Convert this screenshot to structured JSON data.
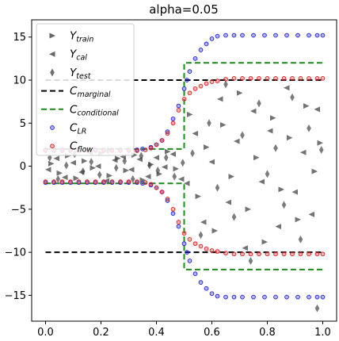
{
  "chart_data": {
    "type": "scatter",
    "title": "alpha=0.05",
    "xlabel": "",
    "ylabel": "",
    "xlim": [
      -0.05,
      1.05
    ],
    "ylim": [
      -18.0,
      17.0
    ],
    "x_ticks": [
      0.0,
      0.2,
      0.4,
      0.6,
      0.8,
      1.0
    ],
    "x_tick_labels": [
      "0.0",
      "0.2",
      "0.4",
      "0.6",
      "0.8",
      "1.0"
    ],
    "y_ticks": [
      -15,
      -10,
      -5,
      0,
      5,
      10,
      15
    ],
    "y_tick_labels": [
      "−15",
      "−10",
      "−5",
      "0",
      "5",
      "10",
      "15"
    ],
    "grid": false,
    "legend_position": "top-left",
    "legend": [
      {
        "label": "Y",
        "sub": "train",
        "marker": "triangle-right",
        "color": "#333333"
      },
      {
        "label": "Y",
        "sub": "cal",
        "marker": "triangle-left",
        "color": "#333333"
      },
      {
        "label": "Y",
        "sub": "test",
        "marker": "thin-diamond",
        "color": "#333333"
      },
      {
        "label": "C",
        "sub": "marginal",
        "marker": "dashed-line",
        "color": "#000000"
      },
      {
        "label": "C",
        "sub": "conditional",
        "marker": "dashed-line",
        "color": "#1a8a1a"
      },
      {
        "label": "C",
        "sub": "LR",
        "marker": "circle",
        "color": "#2020e0"
      },
      {
        "label": "C",
        "sub": "flow",
        "marker": "circle",
        "color": "#e02020"
      }
    ],
    "series": [
      {
        "name": "C_marginal",
        "kind": "dashed-line",
        "color": "#000000",
        "lines": [
          {
            "x": [
              0.0,
              1.0
            ],
            "y": [
              10.0,
              10.0
            ]
          },
          {
            "x": [
              0.0,
              1.0
            ],
            "y": [
              -10.0,
              -10.0
            ]
          }
        ]
      },
      {
        "name": "C_conditional",
        "kind": "dashed-line",
        "color": "#1a8a1a",
        "lines": [
          {
            "x": [
              0.0,
              0.5,
              0.5,
              1.0
            ],
            "y": [
              2.0,
              2.0,
              12.0,
              12.0
            ]
          },
          {
            "x": [
              0.0,
              0.5,
              0.5,
              1.0
            ],
            "y": [
              -2.0,
              -2.0,
              -12.0,
              -12.0
            ]
          }
        ]
      },
      {
        "name": "C_LR",
        "kind": "circle-markers",
        "color": "#2020e0",
        "points": [
          [
            0.0,
            1.9
          ],
          [
            0.03,
            1.9
          ],
          [
            0.06,
            1.9
          ],
          [
            0.09,
            1.9
          ],
          [
            0.12,
            1.9
          ],
          [
            0.15,
            1.9
          ],
          [
            0.18,
            1.9
          ],
          [
            0.21,
            1.9
          ],
          [
            0.24,
            1.9
          ],
          [
            0.27,
            1.9
          ],
          [
            0.3,
            1.9
          ],
          [
            0.33,
            1.9
          ],
          [
            0.35,
            2.0
          ],
          [
            0.38,
            2.2
          ],
          [
            0.4,
            2.5
          ],
          [
            0.42,
            3.0
          ],
          [
            0.44,
            4.0
          ],
          [
            0.46,
            5.5
          ],
          [
            0.48,
            7.0
          ],
          [
            0.5,
            9.0
          ],
          [
            0.51,
            10.0
          ],
          [
            0.52,
            11.0
          ],
          [
            0.54,
            12.5
          ],
          [
            0.56,
            13.5
          ],
          [
            0.58,
            14.2
          ],
          [
            0.6,
            14.8
          ],
          [
            0.62,
            15.1
          ],
          [
            0.65,
            15.2
          ],
          [
            0.68,
            15.2
          ],
          [
            0.71,
            15.2
          ],
          [
            0.75,
            15.2
          ],
          [
            0.79,
            15.2
          ],
          [
            0.83,
            15.2
          ],
          [
            0.87,
            15.2
          ],
          [
            0.91,
            15.2
          ],
          [
            0.95,
            15.2
          ],
          [
            0.98,
            15.2
          ],
          [
            1.0,
            15.2
          ],
          [
            0.0,
            -1.9
          ],
          [
            0.03,
            -1.9
          ],
          [
            0.06,
            -1.9
          ],
          [
            0.09,
            -1.9
          ],
          [
            0.12,
            -1.9
          ],
          [
            0.15,
            -1.9
          ],
          [
            0.18,
            -1.9
          ],
          [
            0.21,
            -1.9
          ],
          [
            0.24,
            -1.9
          ],
          [
            0.27,
            -1.9
          ],
          [
            0.3,
            -1.9
          ],
          [
            0.33,
            -1.9
          ],
          [
            0.35,
            -2.0
          ],
          [
            0.38,
            -2.2
          ],
          [
            0.4,
            -2.5
          ],
          [
            0.42,
            -3.0
          ],
          [
            0.44,
            -4.0
          ],
          [
            0.46,
            -5.5
          ],
          [
            0.48,
            -7.0
          ],
          [
            0.5,
            -9.0
          ],
          [
            0.51,
            -10.0
          ],
          [
            0.52,
            -11.0
          ],
          [
            0.54,
            -12.5
          ],
          [
            0.56,
            -13.5
          ],
          [
            0.58,
            -14.2
          ],
          [
            0.6,
            -14.8
          ],
          [
            0.62,
            -15.1
          ],
          [
            0.65,
            -15.2
          ],
          [
            0.68,
            -15.2
          ],
          [
            0.71,
            -15.2
          ],
          [
            0.75,
            -15.2
          ],
          [
            0.79,
            -15.2
          ],
          [
            0.83,
            -15.2
          ],
          [
            0.87,
            -15.2
          ],
          [
            0.91,
            -15.2
          ],
          [
            0.95,
            -15.2
          ],
          [
            0.98,
            -15.2
          ],
          [
            1.0,
            -15.2
          ]
        ]
      },
      {
        "name": "C_flow",
        "kind": "circle-markers",
        "color": "#e02020",
        "points": [
          [
            0.0,
            1.8
          ],
          [
            0.03,
            1.8
          ],
          [
            0.06,
            1.8
          ],
          [
            0.09,
            1.8
          ],
          [
            0.12,
            1.8
          ],
          [
            0.15,
            1.8
          ],
          [
            0.18,
            1.8
          ],
          [
            0.21,
            1.8
          ],
          [
            0.24,
            1.8
          ],
          [
            0.27,
            1.8
          ],
          [
            0.3,
            1.8
          ],
          [
            0.33,
            1.8
          ],
          [
            0.36,
            1.9
          ],
          [
            0.38,
            2.1
          ],
          [
            0.4,
            2.5
          ],
          [
            0.42,
            3.0
          ],
          [
            0.44,
            3.8
          ],
          [
            0.46,
            5.0
          ],
          [
            0.48,
            6.5
          ],
          [
            0.5,
            7.8
          ],
          [
            0.52,
            8.5
          ],
          [
            0.54,
            9.0
          ],
          [
            0.56,
            9.3
          ],
          [
            0.58,
            9.6
          ],
          [
            0.6,
            9.8
          ],
          [
            0.62,
            9.9
          ],
          [
            0.65,
            10.1
          ],
          [
            0.68,
            10.2
          ],
          [
            0.71,
            10.2
          ],
          [
            0.74,
            10.2
          ],
          [
            0.77,
            10.2
          ],
          [
            0.8,
            10.2
          ],
          [
            0.83,
            10.2
          ],
          [
            0.86,
            10.2
          ],
          [
            0.89,
            10.2
          ],
          [
            0.92,
            10.2
          ],
          [
            0.95,
            10.2
          ],
          [
            0.98,
            10.2
          ],
          [
            1.0,
            10.2
          ],
          [
            0.0,
            -1.8
          ],
          [
            0.03,
            -1.8
          ],
          [
            0.06,
            -1.8
          ],
          [
            0.09,
            -1.8
          ],
          [
            0.12,
            -1.8
          ],
          [
            0.15,
            -1.8
          ],
          [
            0.18,
            -1.8
          ],
          [
            0.21,
            -1.8
          ],
          [
            0.24,
            -1.8
          ],
          [
            0.27,
            -1.8
          ],
          [
            0.3,
            -1.8
          ],
          [
            0.33,
            -1.8
          ],
          [
            0.36,
            -1.9
          ],
          [
            0.38,
            -2.1
          ],
          [
            0.4,
            -2.5
          ],
          [
            0.42,
            -3.0
          ],
          [
            0.44,
            -3.8
          ],
          [
            0.46,
            -5.0
          ],
          [
            0.48,
            -6.5
          ],
          [
            0.5,
            -7.8
          ],
          [
            0.52,
            -8.5
          ],
          [
            0.54,
            -9.0
          ],
          [
            0.56,
            -9.3
          ],
          [
            0.58,
            -9.6
          ],
          [
            0.6,
            -9.8
          ],
          [
            0.62,
            -9.9
          ],
          [
            0.65,
            -10.1
          ],
          [
            0.68,
            -10.2
          ],
          [
            0.71,
            -10.2
          ],
          [
            0.74,
            -10.2
          ],
          [
            0.77,
            -10.2
          ],
          [
            0.8,
            -10.2
          ],
          [
            0.83,
            -10.2
          ],
          [
            0.86,
            -10.2
          ],
          [
            0.89,
            -10.2
          ],
          [
            0.92,
            -10.2
          ],
          [
            0.95,
            -10.2
          ],
          [
            0.98,
            -10.2
          ],
          [
            1.0,
            -10.2
          ]
        ]
      },
      {
        "name": "Y_train",
        "kind": "triangle-right-markers",
        "color": "#444444",
        "points": [
          [
            0.02,
            0.3
          ],
          [
            0.05,
            -0.8
          ],
          [
            0.08,
            1.2
          ],
          [
            0.11,
            -1.4
          ],
          [
            0.14,
            0.6
          ],
          [
            0.17,
            -0.2
          ],
          [
            0.2,
            1.5
          ],
          [
            0.23,
            -1.1
          ],
          [
            0.26,
            0.9
          ],
          [
            0.29,
            -0.5
          ],
          [
            0.32,
            1.3
          ],
          [
            0.35,
            -1.6
          ],
          [
            0.38,
            0.2
          ],
          [
            0.41,
            -0.9
          ],
          [
            0.44,
            1.7
          ],
          [
            0.47,
            -0.3
          ],
          [
            0.52,
            6.0
          ],
          [
            0.55,
            -3.5
          ],
          [
            0.58,
            2.2
          ],
          [
            0.61,
            -7.5
          ],
          [
            0.64,
            4.8
          ],
          [
            0.67,
            -1.2
          ],
          [
            0.7,
            8.5
          ],
          [
            0.73,
            -5.0
          ],
          [
            0.76,
            1.0
          ],
          [
            0.79,
            -8.8
          ],
          [
            0.82,
            5.6
          ],
          [
            0.85,
            -2.7
          ],
          [
            0.88,
            3.3
          ],
          [
            0.91,
            -6.2
          ],
          [
            0.94,
            7.0
          ],
          [
            0.97,
            -0.6
          ],
          [
            0.99,
            2.7
          ]
        ]
      },
      {
        "name": "Y_cal",
        "kind": "triangle-left-markers",
        "color": "#444444",
        "points": [
          [
            0.01,
            -0.4
          ],
          [
            0.04,
            0.9
          ],
          [
            0.07,
            -1.3
          ],
          [
            0.1,
            0.4
          ],
          [
            0.13,
            -0.7
          ],
          [
            0.16,
            1.6
          ],
          [
            0.19,
            0.0
          ],
          [
            0.22,
            -1.7
          ],
          [
            0.25,
            0.7
          ],
          [
            0.28,
            1.1
          ],
          [
            0.31,
            -0.4
          ],
          [
            0.34,
            0.8
          ],
          [
            0.37,
            -1.2
          ],
          [
            0.4,
            1.0
          ],
          [
            0.43,
            -0.1
          ],
          [
            0.46,
            1.4
          ],
          [
            0.49,
            -1.5
          ],
          [
            0.51,
            -2.0
          ],
          [
            0.54,
            3.8
          ],
          [
            0.57,
            -6.5
          ],
          [
            0.6,
            0.5
          ],
          [
            0.63,
            7.8
          ],
          [
            0.66,
            -4.2
          ],
          [
            0.69,
            2.9
          ],
          [
            0.72,
            -9.5
          ],
          [
            0.75,
            6.4
          ],
          [
            0.78,
            -1.8
          ],
          [
            0.81,
            4.1
          ],
          [
            0.84,
            -7.0
          ],
          [
            0.87,
            9.1
          ],
          [
            0.9,
            -3.0
          ],
          [
            0.93,
            1.6
          ],
          [
            0.96,
            -5.6
          ],
          [
            0.98,
            6.6
          ]
        ]
      },
      {
        "name": "Y_test",
        "kind": "thin-diamond-markers",
        "color": "#444444",
        "points": [
          [
            0.015,
            1.0
          ],
          [
            0.045,
            -1.5
          ],
          [
            0.075,
            0.1
          ],
          [
            0.105,
            1.4
          ],
          [
            0.135,
            -0.6
          ],
          [
            0.165,
            0.5
          ],
          [
            0.195,
            -1.0
          ],
          [
            0.225,
            1.8
          ],
          [
            0.255,
            -0.2
          ],
          [
            0.285,
            0.6
          ],
          [
            0.315,
            -1.5
          ],
          [
            0.345,
            1.2
          ],
          [
            0.375,
            0.1
          ],
          [
            0.405,
            -0.5
          ],
          [
            0.435,
            1.0
          ],
          [
            0.465,
            -1.2
          ],
          [
            0.495,
            0.4
          ],
          [
            0.53,
            1.5
          ],
          [
            0.56,
            -8.0
          ],
          [
            0.59,
            5.0
          ],
          [
            0.62,
            -2.5
          ],
          [
            0.65,
            9.5
          ],
          [
            0.68,
            -5.9
          ],
          [
            0.71,
            3.6
          ],
          [
            0.74,
            -11.0
          ],
          [
            0.77,
            7.3
          ],
          [
            0.8,
            -0.9
          ],
          [
            0.83,
            2.1
          ],
          [
            0.86,
            -4.5
          ],
          [
            0.89,
            8.0
          ],
          [
            0.92,
            -8.5
          ],
          [
            0.95,
            4.4
          ],
          [
            0.98,
            -16.5
          ],
          [
            0.995,
            1.9
          ]
        ]
      }
    ]
  }
}
